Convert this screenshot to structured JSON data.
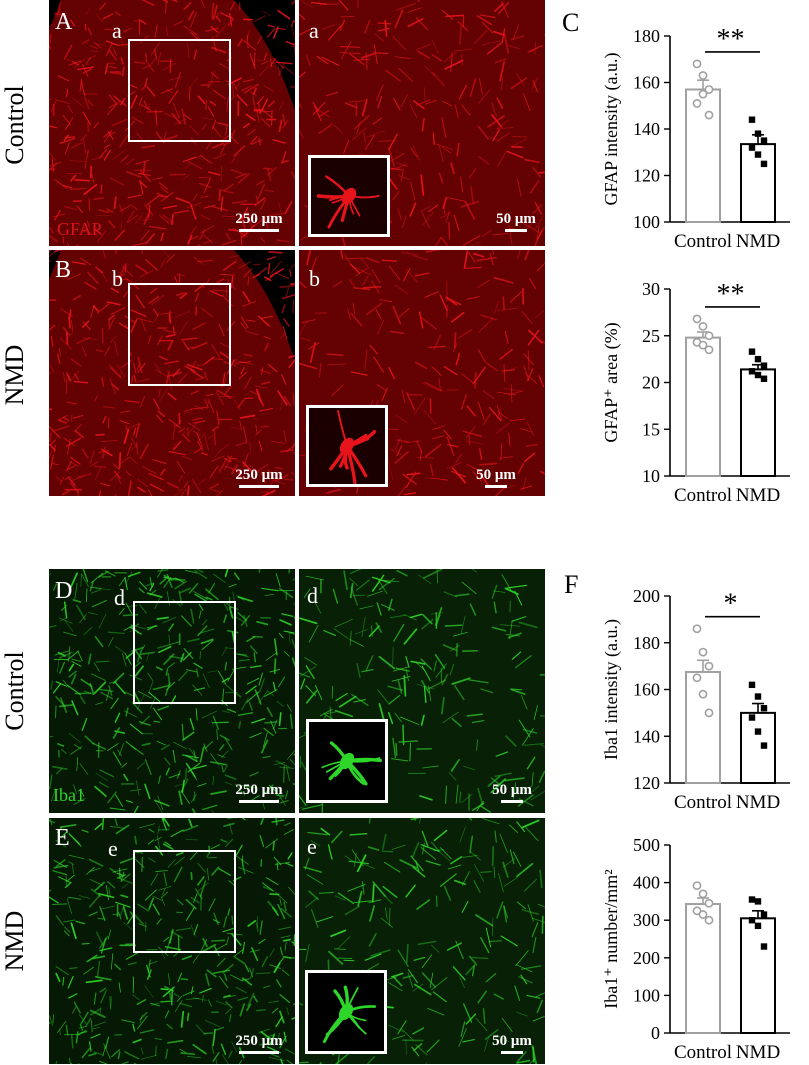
{
  "figure": {
    "panels": {
      "A": {
        "letter": "A",
        "sub": "a",
        "stain": "GFAP",
        "scale": "250 μm"
      },
      "Aa": {
        "letter": "a",
        "scale": "50 μm"
      },
      "B": {
        "letter": "B",
        "sub": "b",
        "scale": "250 μm"
      },
      "Bb": {
        "letter": "b",
        "scale": "50 μm"
      },
      "C": {
        "letter": "C"
      },
      "D": {
        "letter": "D",
        "sub": "d",
        "stain": "Iba1",
        "scale": "250 μm"
      },
      "Dd": {
        "letter": "d",
        "scale": "50 μm"
      },
      "E": {
        "letter": "E",
        "sub": "e",
        "scale": "250 μm"
      },
      "Ee": {
        "letter": "e",
        "scale": "50 μm"
      },
      "F": {
        "letter": "F"
      }
    },
    "row_labels": {
      "r1": "Control",
      "r2": "NMD",
      "r3": "Control",
      "r4": "NMD"
    },
    "colors": {
      "red": "#e8141b",
      "green": "#2fd62a",
      "control_bar": "#a0a0a0",
      "nmd_bar": "#000000"
    }
  },
  "chart_data": [
    {
      "type": "bar",
      "ylabel": "GFAP intensity (a.u.)",
      "categories": [
        "Control",
        "NMD"
      ],
      "values": [
        157,
        133.5
      ],
      "sem": [
        4,
        4
      ],
      "ylim": [
        100,
        180
      ],
      "yticks": [
        100,
        120,
        140,
        160,
        180
      ],
      "points": [
        [
          168,
          163,
          157,
          151,
          155,
          146
        ],
        [
          144,
          138,
          135,
          132,
          129,
          125
        ]
      ],
      "significance": "**"
    },
    {
      "type": "bar",
      "ylabel": "GFAP⁺ area (%)",
      "categories": [
        "Control",
        "NMD"
      ],
      "values": [
        24.8,
        21.4
      ],
      "sem": [
        0.6,
        0.5
      ],
      "ylim": [
        10,
        30
      ],
      "yticks": [
        10,
        15,
        20,
        25,
        30
      ],
      "points": [
        [
          26.8,
          26.0,
          25.0,
          24.3,
          24.0,
          23.5
        ],
        [
          23.3,
          22.5,
          21.8,
          21.2,
          20.8,
          20.4
        ]
      ],
      "significance": "**"
    },
    {
      "type": "bar",
      "ylabel": "Iba1 intensity (a.u.)",
      "categories": [
        "Control",
        "NMD"
      ],
      "values": [
        167.5,
        150
      ],
      "sem": [
        5,
        4
      ],
      "ylim": [
        120,
        200
      ],
      "yticks": [
        120,
        140,
        160,
        180,
        200
      ],
      "points": [
        [
          186,
          176,
          170,
          165,
          158,
          150
        ],
        [
          162,
          157,
          152,
          148,
          142,
          136
        ]
      ],
      "significance": "*"
    },
    {
      "type": "bar",
      "ylabel": "Iba1⁺ number/mm²",
      "categories": [
        "Control",
        "NMD"
      ],
      "values": [
        343,
        305
      ],
      "sem": [
        16,
        20
      ],
      "ylim": [
        0,
        500
      ],
      "yticks": [
        0,
        100,
        200,
        300,
        400,
        500
      ],
      "points": [
        [
          392,
          370,
          345,
          325,
          315,
          300
        ],
        [
          355,
          350,
          315,
          300,
          285,
          230
        ]
      ],
      "significance": ""
    }
  ]
}
